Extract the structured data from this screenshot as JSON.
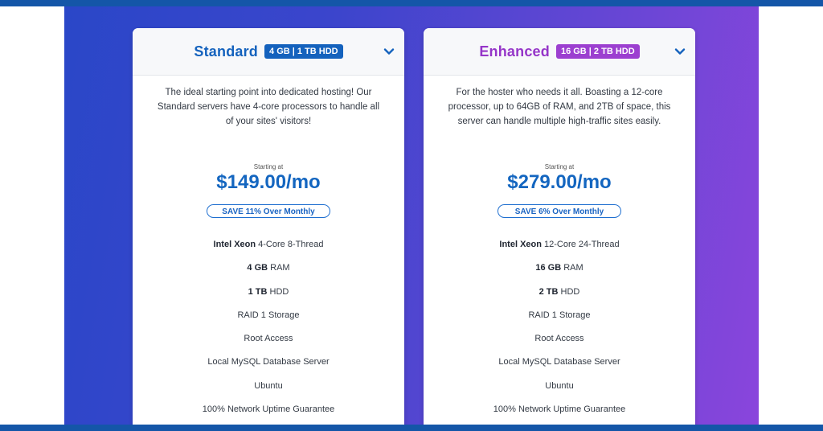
{
  "colors": {
    "standard_accent": "#1462bd",
    "enhanced_accent": "#9c3fd0",
    "frame": "#1456a8"
  },
  "plans": [
    {
      "name": "Standard",
      "badge": "4 GB | 1 TB HDD",
      "description": "The ideal starting point into dedicated hosting! Our Standard servers have 4-core processors to handle all of your sites' visitors!",
      "starting_label": "Starting at",
      "price": "$149.00/mo",
      "save": "SAVE 11% Over Monthly",
      "features": [
        {
          "bold": "Intel Xeon",
          "text": " 4-Core 8-Thread"
        },
        {
          "bold": "4 GB",
          "text": " RAM"
        },
        {
          "bold": "1 TB",
          "text": " HDD"
        },
        {
          "bold": "",
          "text": "RAID 1 Storage"
        },
        {
          "bold": "",
          "text": "Root Access"
        },
        {
          "bold": "",
          "text": "Local MySQL Database Server"
        },
        {
          "bold": "",
          "text": "Ubuntu"
        },
        {
          "bold": "",
          "text": "100% Network Uptime Guarantee"
        }
      ]
    },
    {
      "name": "Enhanced",
      "badge": "16 GB | 2 TB HDD",
      "description": "For the hoster who needs it all. Boasting a 12-core processor, up to 64GB of RAM, and 2TB of space, this server can handle multiple high-traffic sites easily.",
      "starting_label": "Starting at",
      "price": "$279.00/mo",
      "save": "SAVE 6% Over Monthly",
      "features": [
        {
          "bold": "Intel Xeon",
          "text": " 12-Core 24-Thread"
        },
        {
          "bold": "16 GB",
          "text": " RAM"
        },
        {
          "bold": "2 TB",
          "text": " HDD"
        },
        {
          "bold": "",
          "text": "RAID 1 Storage"
        },
        {
          "bold": "",
          "text": "Root Access"
        },
        {
          "bold": "",
          "text": "Local MySQL Database Server"
        },
        {
          "bold": "",
          "text": "Ubuntu"
        },
        {
          "bold": "",
          "text": "100% Network Uptime Guarantee"
        }
      ]
    }
  ]
}
